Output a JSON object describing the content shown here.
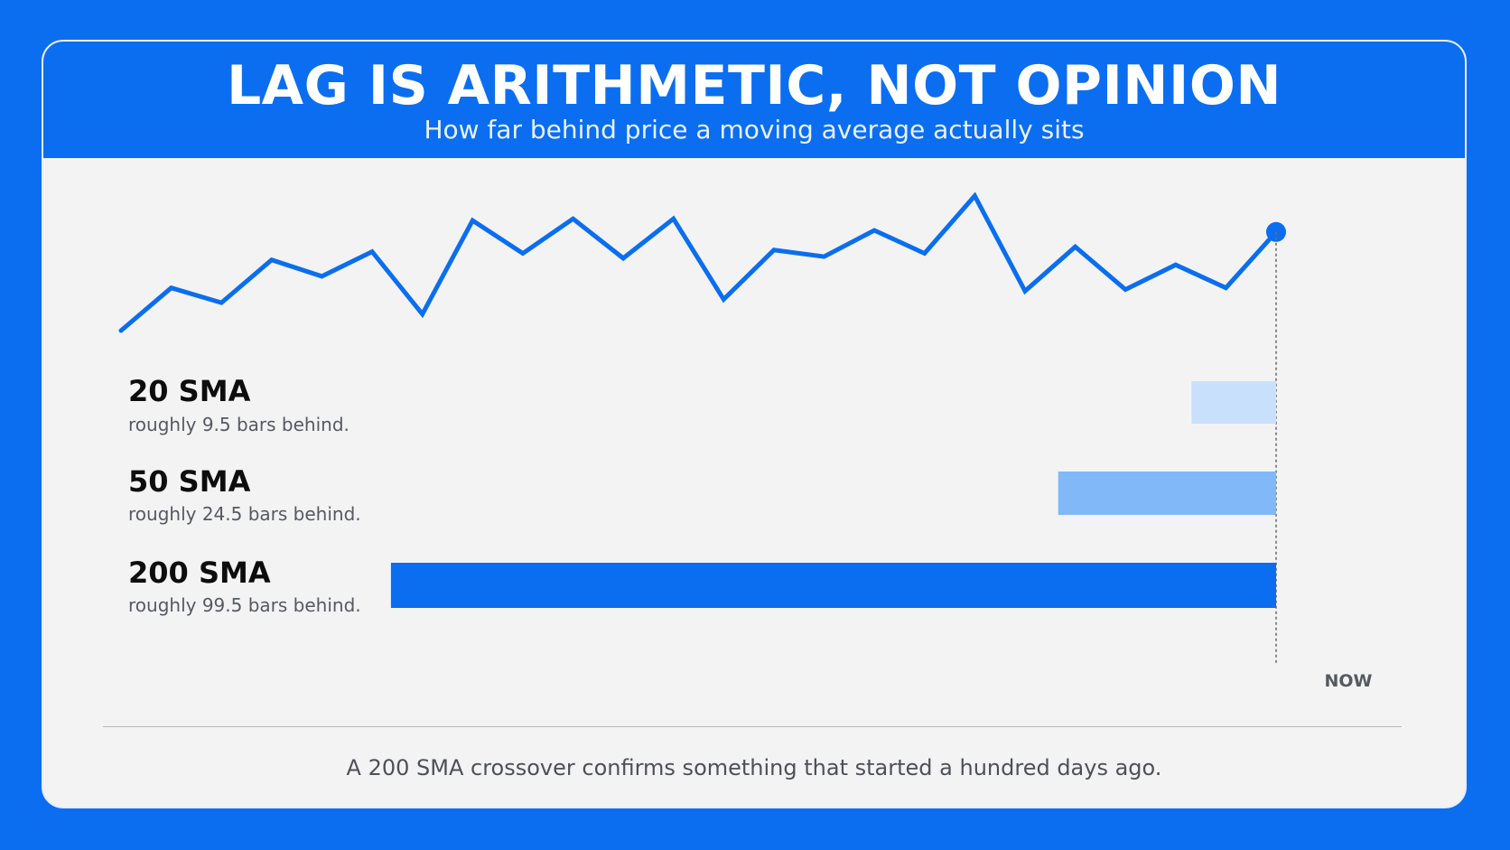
{
  "header": {
    "title": "LAG IS ARITHMETIC, NOT OPINION",
    "subtitle": "How far behind price a moving average actually sits"
  },
  "colors": {
    "accent": "#0b6ef0",
    "card_bg": "#f3f3f4",
    "bar_20": "#c8e0fb",
    "bar_50": "#80b8f8",
    "bar_200": "#0b6ef0"
  },
  "chart_data": {
    "type": "bar",
    "orientation": "horizontal",
    "title": "",
    "xlabel": "",
    "ylabel": "",
    "now_label": "NOW",
    "price_line": {
      "values": [
        0,
        26,
        17,
        43,
        33,
        48,
        10,
        67,
        47,
        68,
        44,
        68,
        19,
        49,
        45,
        61,
        47,
        82,
        24,
        51,
        25,
        40,
        26,
        60
      ]
    },
    "categories": [
      "20 SMA",
      "50 SMA",
      "200 SMA"
    ],
    "series": [
      {
        "values": [
          9.5,
          24.5,
          99.5
        ]
      }
    ],
    "notes": [
      "roughly 9.5 bars behind.",
      "roughly 24.5 bars behind.",
      "roughly 99.5 bars behind."
    ],
    "xlim": [
      0,
      100
    ]
  },
  "footer": {
    "caption": "A 200 SMA crossover confirms something that started a hundred days ago."
  }
}
